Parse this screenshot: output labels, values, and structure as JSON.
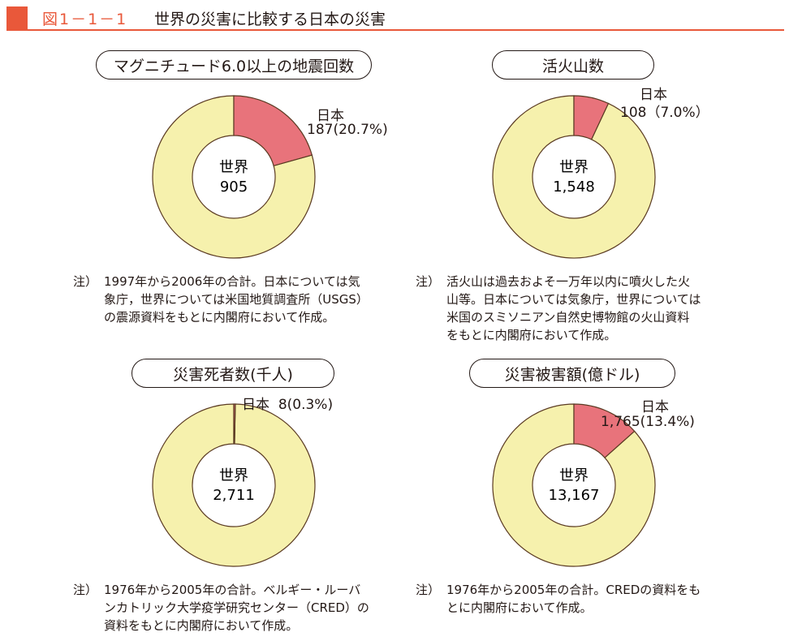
{
  "header": {
    "figure_number": "図1－1－1",
    "title": "世界の災害に比較する日本の災害"
  },
  "colors": {
    "japan": "#e8737b",
    "world": "#f6f1ad",
    "outline": "#5a3a22",
    "accent": "#e9583a"
  },
  "note_key": "注）",
  "chart_data": [
    {
      "type": "pie",
      "title": "マグニチュード6.0以上の地震回数",
      "center_label": "世界",
      "world_value_label": "905",
      "japan_label": "日本",
      "japan_value_label": "187(20.7%)",
      "world": 905,
      "japan": 187,
      "japan_percent": 20.7,
      "note": "1997年から2006年の合計。日本については気\n象庁，世界については米国地質調査所（USGS）\nの震源資料をもとに内閣府において作成。"
    },
    {
      "type": "pie",
      "title": "活火山数",
      "center_label": "世界",
      "world_value_label": "1,548",
      "japan_label": "日本",
      "japan_value_label": "108（7.0%）",
      "world": 1548,
      "japan": 108,
      "japan_percent": 7.0,
      "note": "活火山は過去およそ一万年以内に噴火した火\n山等。日本については気象庁，世界については\n米国のスミソニアン自然史博物館の火山資料\nをもとに内閣府において作成。"
    },
    {
      "type": "pie",
      "title": "災害死者数(千人)",
      "center_label": "世界",
      "world_value_label": "2,711",
      "japan_label": "日本",
      "japan_value_label": "8(0.3%)",
      "world": 2711,
      "japan": 8,
      "japan_percent": 0.3,
      "note": "1976年から2005年の合計。ベルギー・ルーバ\nンカトリック大学疫学研究センター（CRED）の\n資料をもとに内閣府において作成。"
    },
    {
      "type": "pie",
      "title": "災害被害額(億ドル)",
      "center_label": "世界",
      "world_value_label": "13,167",
      "japan_label": "日本",
      "japan_value_label": "1,765(13.4%)",
      "world": 13167,
      "japan": 1765,
      "japan_percent": 13.4,
      "note": "1976年から2005年の合計。CREDの資料をも\nとに内閣府において作成。"
    }
  ]
}
